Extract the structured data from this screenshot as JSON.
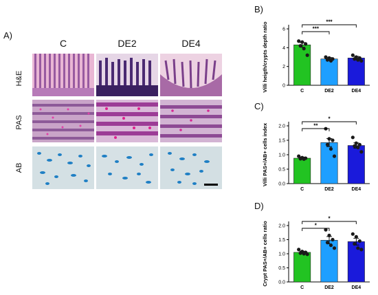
{
  "figure": {
    "panel_a_label": "A)",
    "columns": [
      "C",
      "DE2",
      "DE4"
    ],
    "rows": [
      "H&E",
      "PAS",
      "AB"
    ]
  },
  "colors": {
    "C": "#22c322",
    "DE2": "#1e9fff",
    "DE4": "#1a1adb",
    "he_bg": "#e9b6d4",
    "he_villi": "#7a3f8a",
    "pas_bg": "#c48ac0",
    "ab_bg": "#cfdde2",
    "ab_blue": "#1f7fc4"
  },
  "chart_data": [
    {
      "panel": "B)",
      "type": "bar",
      "categories": [
        "C",
        "DE2",
        "DE4"
      ],
      "values": [
        4.3,
        2.8,
        2.9
      ],
      "errors": [
        0.25,
        0.15,
        0.18
      ],
      "points": [
        [
          4.7,
          4.6,
          4.4,
          4.2,
          3.9,
          3.2
        ],
        [
          3.0,
          2.9,
          2.8,
          2.7,
          2.6
        ],
        [
          3.2,
          3.0,
          2.9,
          2.8,
          2.7,
          2.6
        ]
      ],
      "ylabel": "Villi heigth/crypts depth ratio",
      "ylim": [
        0,
        6
      ],
      "yticks": [
        0,
        2,
        4,
        6
      ],
      "sig": [
        {
          "from": 0,
          "to": 1,
          "label": "***",
          "level": 1
        },
        {
          "from": 0,
          "to": 2,
          "label": "***",
          "level": 2
        }
      ]
    },
    {
      "panel": "C)",
      "type": "bar",
      "categories": [
        "C",
        "DE2",
        "DE4"
      ],
      "values": [
        0.88,
        1.42,
        1.32
      ],
      "errors": [
        0.04,
        0.14,
        0.09
      ],
      "points": [
        [
          0.95,
          0.9,
          0.88,
          0.86,
          0.85
        ],
        [
          1.9,
          1.55,
          1.5,
          1.35,
          1.2,
          0.95
        ],
        [
          1.6,
          1.4,
          1.35,
          1.3,
          1.25,
          1.1
        ]
      ],
      "ylabel": "Villi PAS+/AB+ cells index",
      "ylim": [
        0,
        2
      ],
      "yticks": [
        0.0,
        0.5,
        1.0,
        1.5,
        2.0
      ],
      "sig": [
        {
          "from": 0,
          "to": 1,
          "label": "**",
          "level": 1
        },
        {
          "from": 0,
          "to": 2,
          "label": "*",
          "level": 2
        }
      ]
    },
    {
      "panel": "D)",
      "type": "bar",
      "categories": [
        "C",
        "DE2",
        "DE4"
      ],
      "values": [
        1.05,
        1.48,
        1.43
      ],
      "errors": [
        0.04,
        0.13,
        0.12
      ],
      "points": [
        [
          1.15,
          1.08,
          1.05,
          1.02,
          1.0,
          0.98
        ],
        [
          1.85,
          1.65,
          1.5,
          1.4,
          1.3,
          1.2
        ],
        [
          1.7,
          1.6,
          1.45,
          1.35,
          1.2,
          1.15
        ]
      ],
      "ylabel": "Crypt PAS+/AB+ cells ratio",
      "ylim": [
        0,
        2
      ],
      "yticks": [
        0.0,
        0.5,
        1.0,
        1.5,
        2.0
      ],
      "sig": [
        {
          "from": 0,
          "to": 1,
          "label": "*",
          "level": 1
        },
        {
          "from": 0,
          "to": 2,
          "label": "*",
          "level": 2
        }
      ]
    }
  ]
}
